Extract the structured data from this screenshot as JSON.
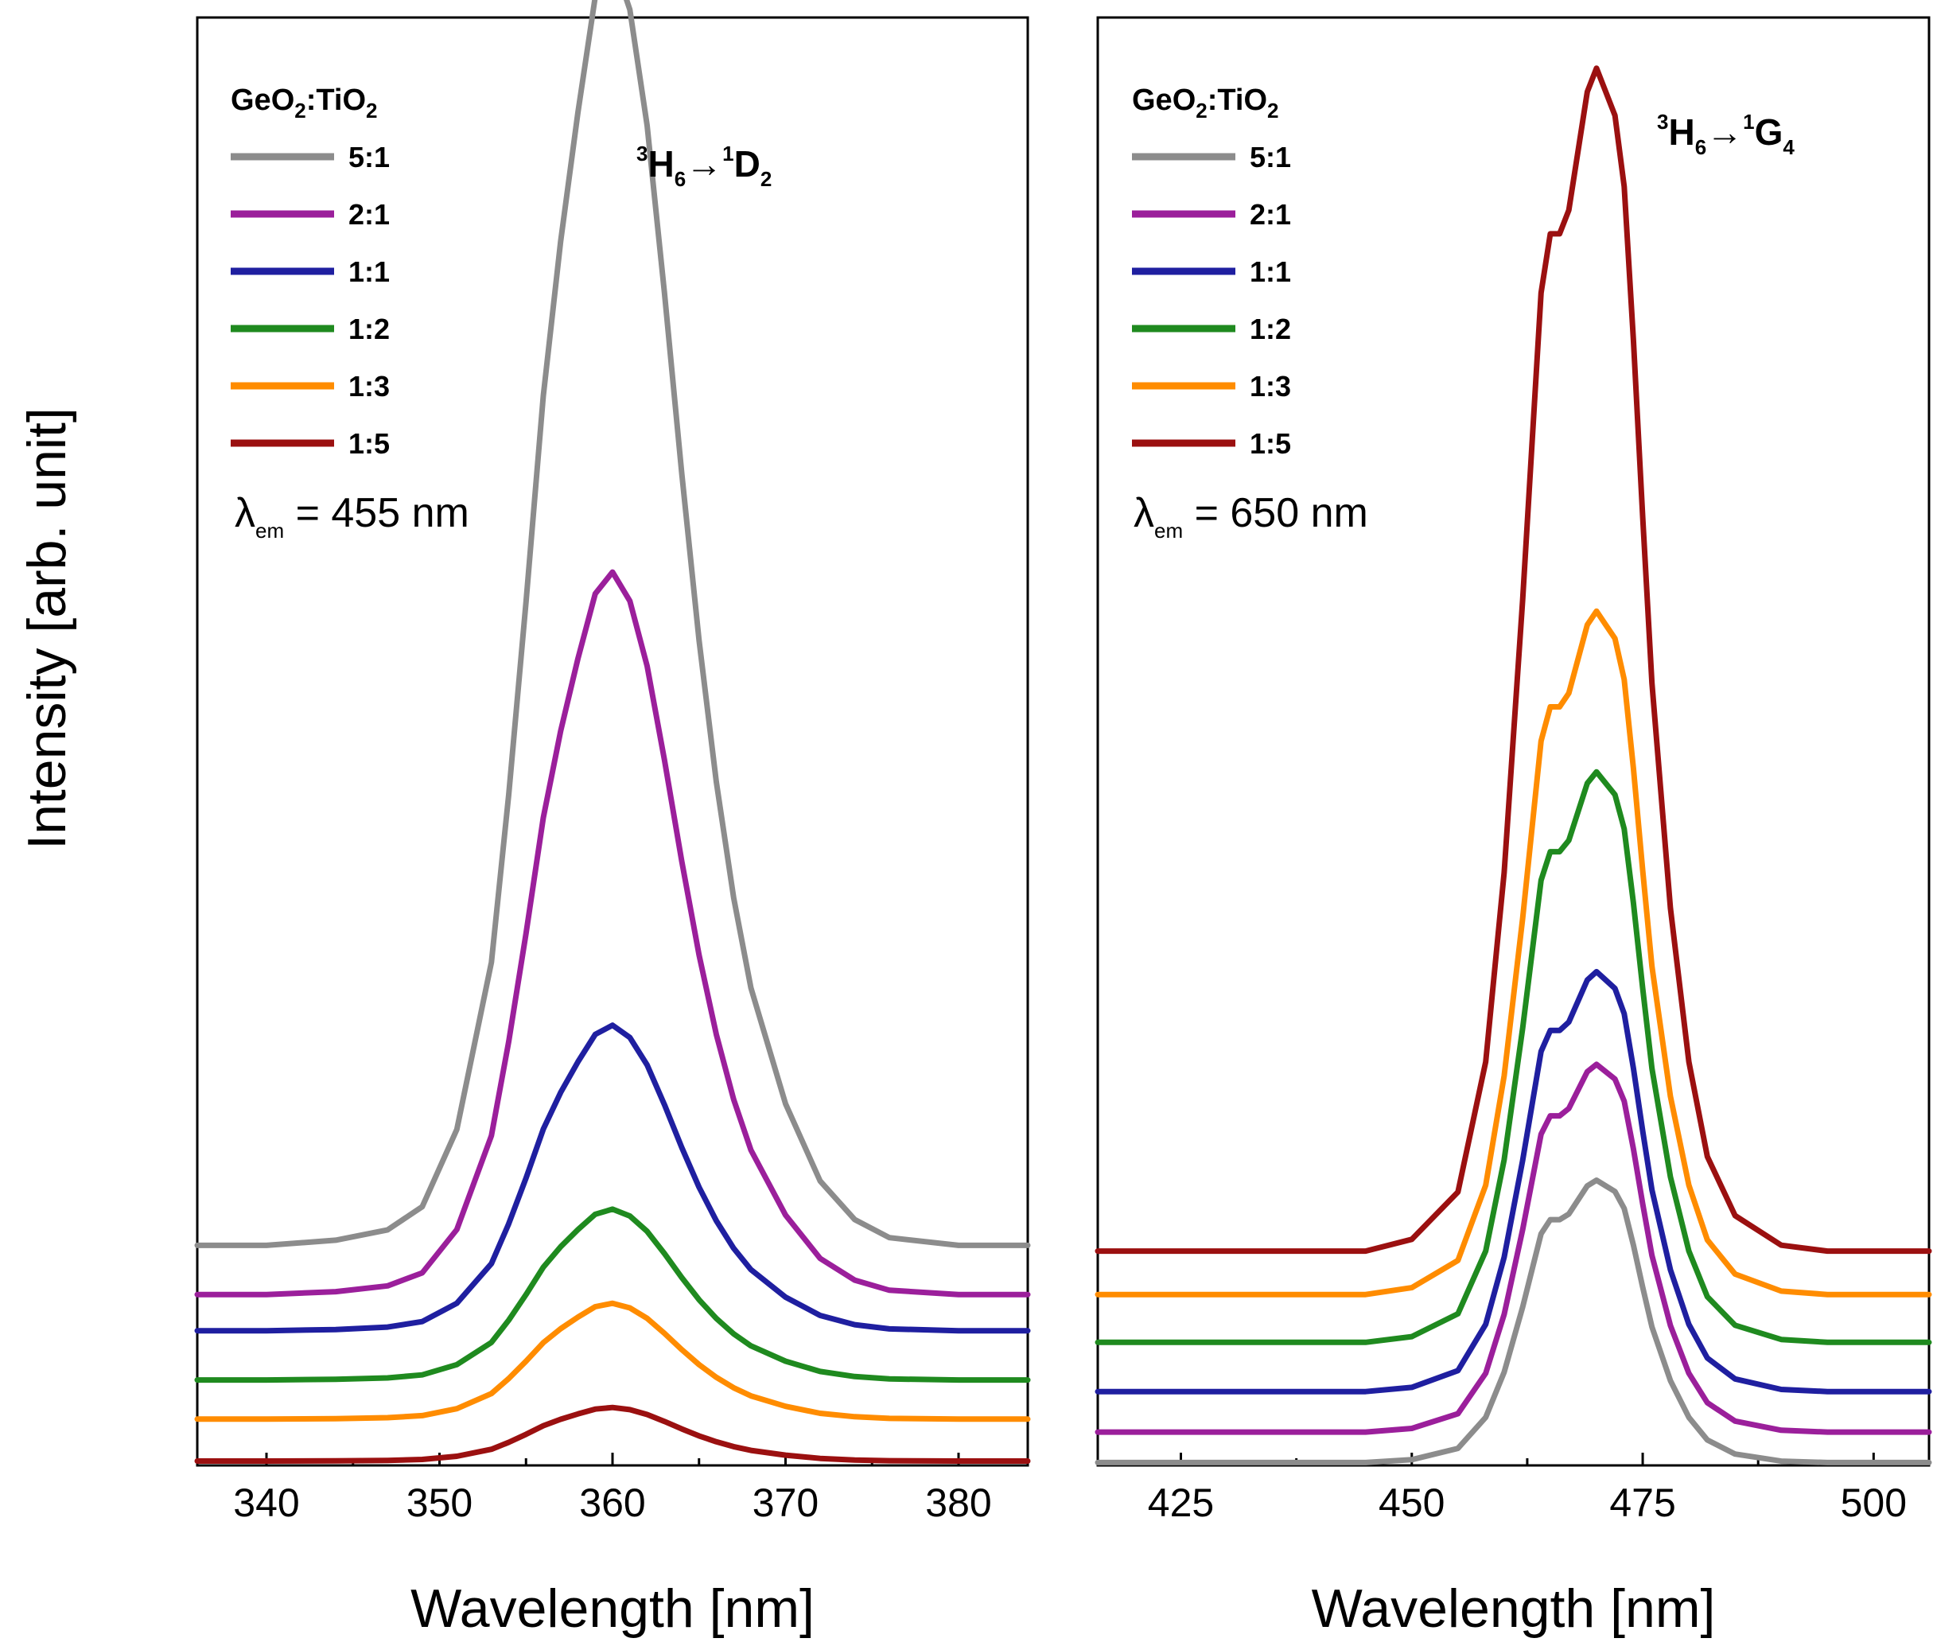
{
  "figure": {
    "ylabel": "Intensity [arb. unit]"
  },
  "chart_data": [
    {
      "type": "line",
      "panel": "left",
      "xlabel": "Wavelength [nm]",
      "ylabel": "Intensity [arb. unit]",
      "xlim": [
        336,
        384
      ],
      "ylim": [
        0,
        1
      ],
      "xticks": [
        340,
        350,
        360,
        370,
        380
      ],
      "grid": false,
      "legend_title": {
        "main": "GeO",
        "sub1": "2",
        "mid": ":TiO",
        "sub2": "2"
      },
      "transition": {
        "sup1": "3",
        "main1": "H",
        "sub1": "6",
        "arrow": "→",
        "sup2": "1",
        "main2": "D",
        "sub2": "2"
      },
      "excitation": {
        "symbol": "λ",
        "sub": "em",
        "text": " = 455 nm"
      },
      "series": [
        {
          "name": "5:1",
          "color": "#8c8c8c",
          "offset": 0.152,
          "peak": 0.889,
          "x": [
            336,
            340,
            344,
            347,
            349,
            351,
            353,
            354,
            355,
            356,
            357,
            358,
            359,
            360,
            361,
            362,
            363,
            364,
            365,
            366,
            367,
            368,
            370,
            372,
            374,
            376,
            380,
            384
          ],
          "y": [
            0,
            0,
            0.004,
            0.012,
            0.03,
            0.09,
            0.22,
            0.35,
            0.5,
            0.66,
            0.78,
            0.88,
            0.97,
            1.0,
            0.96,
            0.87,
            0.74,
            0.6,
            0.47,
            0.36,
            0.27,
            0.2,
            0.11,
            0.05,
            0.02,
            0.006,
            0,
            0
          ]
        },
        {
          "name": "2:1",
          "color": "#9b1f9b",
          "offset": 0.118,
          "peak": 0.499,
          "x": [
            336,
            340,
            344,
            347,
            349,
            351,
            353,
            354,
            355,
            356,
            357,
            358,
            359,
            360,
            361,
            362,
            363,
            364,
            365,
            366,
            367,
            368,
            370,
            372,
            374,
            376,
            380,
            384
          ],
          "y": [
            0,
            0,
            0.004,
            0.012,
            0.03,
            0.09,
            0.22,
            0.35,
            0.5,
            0.66,
            0.78,
            0.88,
            0.97,
            1.0,
            0.96,
            0.87,
            0.74,
            0.6,
            0.47,
            0.36,
            0.27,
            0.2,
            0.11,
            0.05,
            0.02,
            0.006,
            0,
            0
          ]
        },
        {
          "name": "1:1",
          "color": "#1f1fa0",
          "offset": 0.093,
          "peak": 0.211,
          "x": [
            336,
            340,
            344,
            347,
            349,
            351,
            353,
            354,
            355,
            356,
            357,
            358,
            359,
            360,
            361,
            362,
            363,
            364,
            365,
            366,
            367,
            368,
            370,
            372,
            374,
            376,
            380,
            384
          ],
          "y": [
            0,
            0,
            0.004,
            0.012,
            0.03,
            0.09,
            0.22,
            0.35,
            0.5,
            0.66,
            0.78,
            0.88,
            0.97,
            1.0,
            0.96,
            0.87,
            0.74,
            0.6,
            0.47,
            0.36,
            0.27,
            0.2,
            0.11,
            0.05,
            0.02,
            0.006,
            0,
            0
          ]
        },
        {
          "name": "1:2",
          "color": "#1f8a1f",
          "offset": 0.059,
          "peak": 0.118,
          "x": [
            336,
            340,
            344,
            347,
            349,
            351,
            353,
            354,
            355,
            356,
            357,
            358,
            359,
            360,
            361,
            362,
            363,
            364,
            365,
            366,
            367,
            368,
            370,
            372,
            374,
            376,
            380,
            384
          ],
          "y": [
            0,
            0,
            0.004,
            0.012,
            0.03,
            0.09,
            0.22,
            0.35,
            0.5,
            0.66,
            0.78,
            0.88,
            0.97,
            1.0,
            0.96,
            0.87,
            0.74,
            0.6,
            0.47,
            0.36,
            0.27,
            0.2,
            0.11,
            0.05,
            0.02,
            0.006,
            0,
            0
          ]
        },
        {
          "name": "1:3",
          "color": "#ff8c00",
          "offset": 0.032,
          "peak": 0.08,
          "x": [
            336,
            340,
            344,
            347,
            349,
            351,
            353,
            354,
            355,
            356,
            357,
            358,
            359,
            360,
            361,
            362,
            363,
            364,
            365,
            366,
            367,
            368,
            370,
            372,
            374,
            376,
            380,
            384
          ],
          "y": [
            0,
            0,
            0.004,
            0.012,
            0.03,
            0.09,
            0.22,
            0.35,
            0.5,
            0.66,
            0.78,
            0.88,
            0.97,
            1.0,
            0.96,
            0.87,
            0.74,
            0.6,
            0.47,
            0.36,
            0.27,
            0.2,
            0.11,
            0.05,
            0.02,
            0.006,
            0,
            0
          ]
        },
        {
          "name": "1:5",
          "color": "#9b1010",
          "offset": 0.003,
          "peak": 0.037,
          "x": [
            336,
            340,
            344,
            347,
            349,
            351,
            353,
            354,
            355,
            356,
            357,
            358,
            359,
            360,
            361,
            362,
            363,
            364,
            365,
            366,
            367,
            368,
            370,
            372,
            374,
            376,
            380,
            384
          ],
          "y": [
            0,
            0,
            0.004,
            0.012,
            0.03,
            0.09,
            0.22,
            0.35,
            0.5,
            0.66,
            0.78,
            0.88,
            0.97,
            1.0,
            0.96,
            0.87,
            0.74,
            0.6,
            0.47,
            0.36,
            0.27,
            0.2,
            0.11,
            0.05,
            0.02,
            0.006,
            0,
            0
          ]
        }
      ]
    },
    {
      "type": "line",
      "panel": "right",
      "xlabel": "Wavelength [nm]",
      "ylabel": "Intensity [arb. unit]",
      "xlim": [
        416,
        506
      ],
      "ylim": [
        0,
        1
      ],
      "xticks": [
        425,
        450,
        475,
        500
      ],
      "grid": false,
      "legend_title": {
        "main": "GeO",
        "sub1": "2",
        "mid": ":TiO",
        "sub2": "2"
      },
      "transition": {
        "sup1": "3",
        "main1": "H",
        "sub1": "6",
        "arrow": "→",
        "sup2": "1",
        "main2": "G",
        "sub2": "4"
      },
      "excitation": {
        "symbol": "λ",
        "sub": "em",
        "text": " = 650 nm"
      },
      "series": [
        {
          "name": "5:1",
          "color": "#8c8c8c",
          "offset": 0.002,
          "peak": 0.195,
          "x": [
            416,
            445,
            450,
            455,
            458,
            460,
            462,
            463,
            464,
            465,
            466,
            467,
            468,
            469,
            470,
            471,
            472,
            473,
            474,
            475,
            476,
            478,
            480,
            482,
            485,
            490,
            495,
            506
          ],
          "y": [
            0,
            0,
            0.01,
            0.05,
            0.16,
            0.32,
            0.55,
            0.68,
            0.81,
            0.86,
            0.86,
            0.88,
            0.93,
            0.98,
            1.0,
            0.98,
            0.96,
            0.9,
            0.77,
            0.62,
            0.48,
            0.29,
            0.16,
            0.08,
            0.03,
            0.005,
            0,
            0
          ]
        },
        {
          "name": "2:1",
          "color": "#9b1f9b",
          "offset": 0.023,
          "peak": 0.254,
          "x": [
            416,
            445,
            450,
            455,
            458,
            460,
            462,
            463,
            464,
            465,
            466,
            467,
            468,
            469,
            470,
            471,
            472,
            473,
            474,
            475,
            476,
            478,
            480,
            482,
            485,
            490,
            495,
            506
          ],
          "y": [
            0,
            0,
            0.01,
            0.05,
            0.16,
            0.32,
            0.55,
            0.68,
            0.81,
            0.86,
            0.86,
            0.88,
            0.93,
            0.98,
            1.0,
            0.98,
            0.96,
            0.9,
            0.77,
            0.62,
            0.48,
            0.29,
            0.16,
            0.08,
            0.03,
            0.005,
            0,
            0
          ]
        },
        {
          "name": "1:1",
          "color": "#1f1fa0",
          "offset": 0.051,
          "peak": 0.29,
          "x": [
            416,
            445,
            450,
            455,
            458,
            460,
            462,
            463,
            464,
            465,
            466,
            467,
            468,
            469,
            470,
            471,
            472,
            473,
            474,
            475,
            476,
            478,
            480,
            482,
            485,
            490,
            495,
            506
          ],
          "y": [
            0,
            0,
            0.01,
            0.05,
            0.16,
            0.32,
            0.55,
            0.68,
            0.81,
            0.86,
            0.86,
            0.88,
            0.93,
            0.98,
            1.0,
            0.98,
            0.96,
            0.9,
            0.77,
            0.62,
            0.48,
            0.29,
            0.16,
            0.08,
            0.03,
            0.005,
            0,
            0
          ]
        },
        {
          "name": "1:2",
          "color": "#1f8a1f",
          "offset": 0.085,
          "peak": 0.394,
          "x": [
            416,
            445,
            450,
            455,
            458,
            460,
            462,
            463,
            464,
            465,
            466,
            467,
            468,
            469,
            470,
            471,
            472,
            473,
            474,
            475,
            476,
            478,
            480,
            482,
            485,
            490,
            495,
            506
          ],
          "y": [
            0,
            0,
            0.01,
            0.05,
            0.16,
            0.32,
            0.55,
            0.68,
            0.81,
            0.86,
            0.86,
            0.88,
            0.93,
            0.98,
            1.0,
            0.98,
            0.96,
            0.9,
            0.77,
            0.62,
            0.48,
            0.29,
            0.16,
            0.08,
            0.03,
            0.005,
            0,
            0
          ]
        },
        {
          "name": "1:3",
          "color": "#ff8c00",
          "offset": 0.118,
          "peak": 0.472,
          "x": [
            416,
            445,
            450,
            455,
            458,
            460,
            462,
            463,
            464,
            465,
            466,
            467,
            468,
            469,
            470,
            471,
            472,
            473,
            474,
            475,
            476,
            478,
            480,
            482,
            485,
            490,
            495,
            506
          ],
          "y": [
            0,
            0,
            0.01,
            0.05,
            0.16,
            0.32,
            0.55,
            0.68,
            0.81,
            0.86,
            0.86,
            0.88,
            0.93,
            0.98,
            1.0,
            0.98,
            0.96,
            0.9,
            0.77,
            0.62,
            0.48,
            0.29,
            0.16,
            0.08,
            0.03,
            0.005,
            0,
            0
          ]
        },
        {
          "name": "1:5",
          "color": "#9b1010",
          "offset": 0.148,
          "peak": 0.817,
          "x": [
            416,
            445,
            450,
            455,
            458,
            460,
            462,
            463,
            464,
            465,
            466,
            467,
            468,
            469,
            470,
            471,
            472,
            473,
            474,
            475,
            476,
            478,
            480,
            482,
            485,
            490,
            495,
            506
          ],
          "y": [
            0,
            0,
            0.01,
            0.05,
            0.16,
            0.32,
            0.55,
            0.68,
            0.81,
            0.86,
            0.86,
            0.88,
            0.93,
            0.98,
            1.0,
            0.98,
            0.96,
            0.9,
            0.77,
            0.62,
            0.48,
            0.29,
            0.16,
            0.08,
            0.03,
            0.005,
            0,
            0
          ]
        }
      ]
    }
  ]
}
